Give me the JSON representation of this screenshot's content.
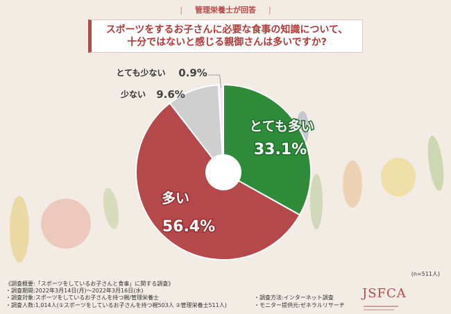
{
  "header": {
    "label": "管理栄養士が回答",
    "bar": "|"
  },
  "title": {
    "line1": "スポーツをするお子さんに必要な食事の知識について、",
    "line2": "十分ではないと感じる親御さんは多いですか?"
  },
  "colors": {
    "very_many": "#2e8b3a",
    "many": "#b5484a",
    "few": "#cfcfcf",
    "very_few": "#ededed",
    "title_red": "#b03a37",
    "background": "#f3ece4"
  },
  "chart_data": {
    "type": "pie",
    "donut": true,
    "start": "12 o'clock, clockwise",
    "slices": [
      {
        "label": "とても多い",
        "value": 33.1,
        "display": "33.1%",
        "color": "#2e8b3a"
      },
      {
        "label": "多い",
        "value": 56.4,
        "display": "56.4%",
        "color": "#b5484a"
      },
      {
        "label": "少ない",
        "value": 9.6,
        "display": "9.6%",
        "color": "#cfcfcf"
      },
      {
        "label": "とても少ない",
        "value": 0.9,
        "display": "0.9%",
        "color": "#ededed"
      }
    ]
  },
  "n_note": "(n=511人)",
  "footer": {
    "line1": "《調査概要:「スポーツをしているお子さんと食事」に関する調査》",
    "line2": "・調査期間:2022年3月14日(月)〜2022年3月16日(水)",
    "line3": "・調査対象:スポーツをしているお子さんを持つ親/管理栄養士",
    "line4": "・調査人数:1,014人(①スポーツをしているお子さんを持つ親503人 ②管理栄養士511人)",
    "method": "・調査方法:インターネット調査",
    "provider": "・モニター提供元:ゼネラルリサーチ"
  },
  "logo": {
    "mark": "JSFCA"
  }
}
